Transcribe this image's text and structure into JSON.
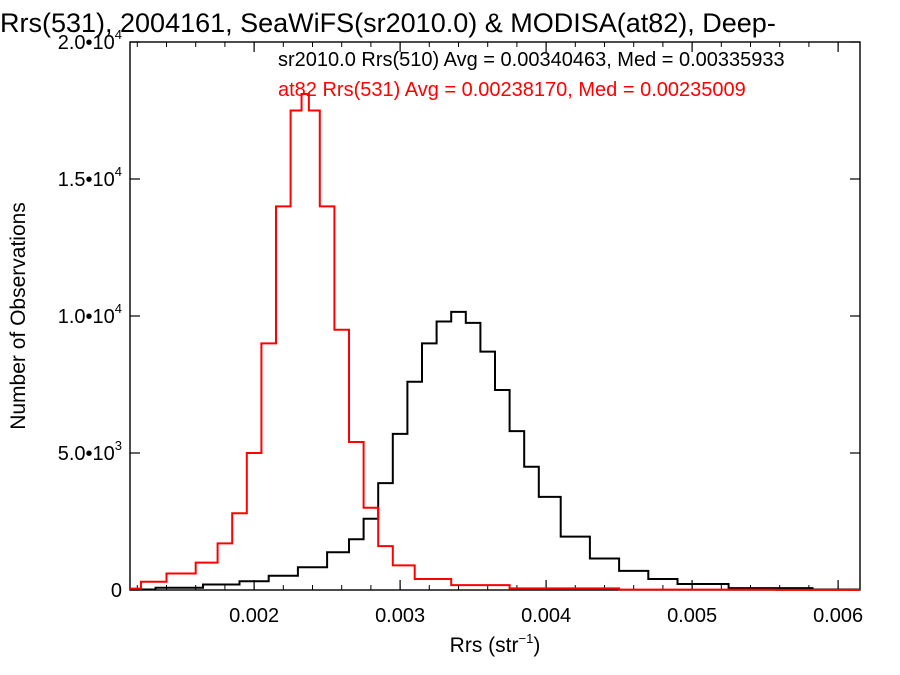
{
  "chart_data": {
    "type": "line",
    "title": "Rrs(531), 2004161, SeaWiFS(sr2010.0) & MODISA(at82), Deep-",
    "xlabel": "Rrs (str",
    "xlabel_sup": "−1",
    "xlabel_end": ")",
    "ylabel": "Number of Observations",
    "xlim": [
      0.00115,
      0.00615
    ],
    "ylim": [
      0,
      20000
    ],
    "x_ticks": [
      {
        "value": 0.002,
        "label": "0.002"
      },
      {
        "value": 0.003,
        "label": "0.003"
      },
      {
        "value": 0.004,
        "label": "0.004"
      },
      {
        "value": 0.005,
        "label": "0.005"
      },
      {
        "value": 0.006,
        "label": "0.006"
      }
    ],
    "y_ticks": [
      {
        "value": 0,
        "mant": "0",
        "exp": ""
      },
      {
        "value": 5000,
        "mant": "5.0•10",
        "exp": "3"
      },
      {
        "value": 10000,
        "mant": "1.0•10",
        "exp": "4"
      },
      {
        "value": 15000,
        "mant": "1.5•10",
        "exp": "4"
      },
      {
        "value": 20000,
        "mant": "2.0•10",
        "exp": "4"
      }
    ],
    "grid": false,
    "legend_position": "top-right",
    "series": [
      {
        "name": "sr2010.0 Rrs(510) Avg = 0.00340463, Med = 0.00335933",
        "color": "#000000",
        "x": [
          0.00115,
          0.0015,
          0.0018,
          0.002,
          0.0022,
          0.0024,
          0.0026,
          0.0027,
          0.0028,
          0.0029,
          0.003,
          0.0031,
          0.0032,
          0.0033,
          0.0034,
          0.0035,
          0.0036,
          0.0037,
          0.0038,
          0.0039,
          0.004,
          0.0042,
          0.0044,
          0.0046,
          0.0048,
          0.005,
          0.0055,
          0.00615
        ],
        "y": [
          20,
          80,
          200,
          320,
          520,
          830,
          1380,
          1850,
          2600,
          3900,
          5700,
          7600,
          9000,
          9800,
          10150,
          9750,
          8700,
          7300,
          5800,
          4500,
          3400,
          1950,
          1150,
          700,
          400,
          220,
          70,
          20
        ]
      },
      {
        "name": "at82 Rrs(531) Avg = 0.00238170, Med = 0.00235009",
        "color": "#ff0000",
        "x": [
          0.00115,
          0.0013,
          0.0015,
          0.0017,
          0.0018,
          0.0019,
          0.002,
          0.0021,
          0.0022,
          0.0023,
          0.00235,
          0.0024,
          0.0025,
          0.0026,
          0.0027,
          0.0028,
          0.0029,
          0.003,
          0.0032,
          0.0035,
          0.004,
          0.005,
          0.00615
        ],
        "y": [
          50,
          300,
          600,
          1000,
          1700,
          2800,
          5000,
          9000,
          14000,
          17500,
          18100,
          17500,
          14000,
          9500,
          5400,
          3000,
          1600,
          900,
          400,
          180,
          60,
          15,
          5
        ]
      }
    ]
  }
}
